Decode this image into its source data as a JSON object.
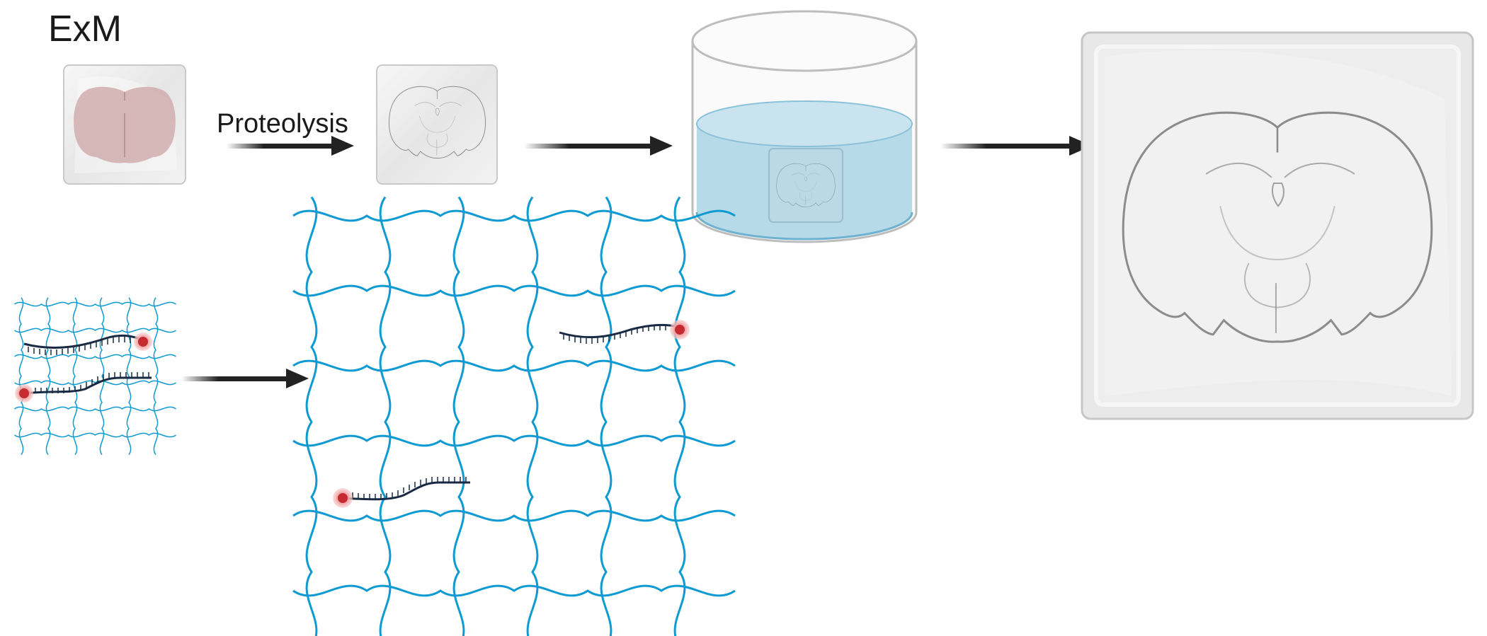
{
  "title": "ExM",
  "step_label": "Proteolysis",
  "colors": {
    "gel_fill": "#ececec",
    "gel_edge": "#c9c9c9",
    "tissue": "#cfa9aa",
    "brain_outline": "#8c8c8c",
    "mesh": "#0f9bd2",
    "water": "#a9d3e4",
    "water_edge": "#6fb2cf",
    "probe": "#1a2a44",
    "dye_core": "#c52a2f",
    "dye_glow": "#f1a7a7",
    "arrow": "#222222"
  },
  "icons": {
    "arrow": "arrow-right-icon",
    "gel": "gel-square-icon",
    "brain": "brain-section-icon",
    "container": "cylinder-container-icon",
    "dye": "fluorophore-icon"
  }
}
